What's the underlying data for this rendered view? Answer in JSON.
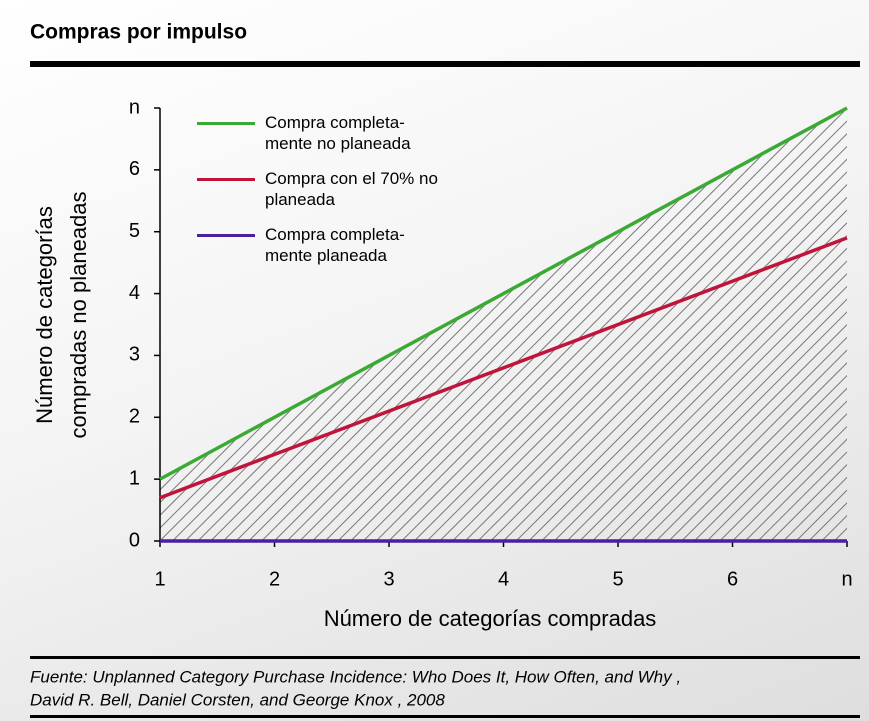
{
  "title": "Compras por impulso",
  "chart_data": {
    "type": "line",
    "x": [
      1,
      7
    ],
    "series": [
      {
        "name": "Compra completa-mente no planeada",
        "color": "#3aaa35",
        "values": [
          1,
          7
        ]
      },
      {
        "name": "Compra con el 70% no planeada",
        "color": "#c0143c",
        "values": [
          0.7,
          4.9
        ]
      },
      {
        "name": "Compra completa-mente planeada",
        "color": "#4b1fa0",
        "values": [
          0,
          0
        ]
      }
    ],
    "xlim": [
      1,
      7
    ],
    "ylim": [
      0,
      7
    ],
    "xticks": [
      1,
      2,
      3,
      4,
      5,
      6,
      {
        "value": 7,
        "label": "n"
      }
    ],
    "yticks": [
      0,
      1,
      2,
      3,
      4,
      5,
      6,
      {
        "value": 7,
        "label": "n"
      }
    ],
    "x_label": "Número de categorías compradas",
    "y_label": [
      "Número de categorías",
      "compradas no planeadas"
    ],
    "hatch": true
  },
  "source": [
    "Fuente:  Unplanned Category Purchase Incidence:  Who Does It, How Often, and Why ,",
    "David R. Bell, Daniel Corsten, and George Knox , 2008"
  ]
}
